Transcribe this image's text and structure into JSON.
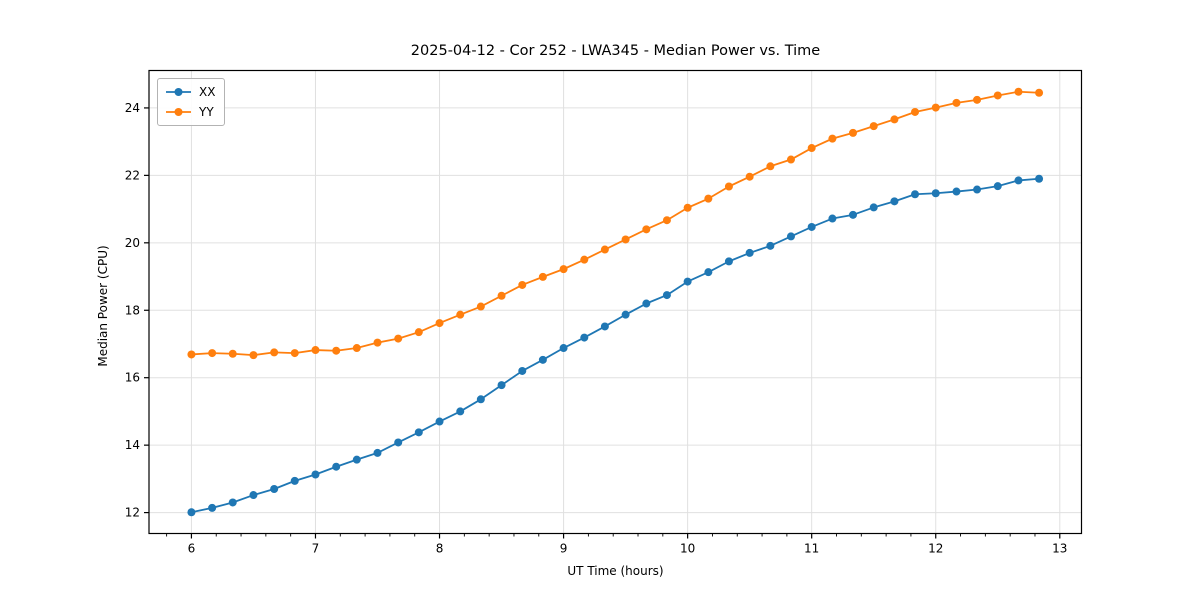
{
  "chart_data": {
    "type": "line",
    "title": "2025-04-12 - Cor 252 - LWA345 - Median Power vs. Time",
    "xlabel": "UT Time (hours)",
    "ylabel": "Median Power (CPU)",
    "xlim": [
      5.658,
      13.175
    ],
    "ylim": [
      11.38,
      25.11
    ],
    "xticks": [
      6,
      7,
      8,
      9,
      10,
      11,
      12,
      13
    ],
    "yticks": [
      12,
      14,
      16,
      18,
      20,
      22,
      24
    ],
    "x_minor_step": 0.2,
    "grid": true,
    "legend_position": "upper left",
    "colors": {
      "background": "#ffffff",
      "grid": "#e0e0e0",
      "spine": "#000000",
      "series_xx": "#1f77b4",
      "series_yy": "#ff7f0e"
    },
    "x": [
      6.0,
      6.167,
      6.333,
      6.5,
      6.667,
      6.833,
      7.0,
      7.167,
      7.333,
      7.5,
      7.667,
      7.833,
      8.0,
      8.167,
      8.333,
      8.5,
      8.667,
      8.833,
      9.0,
      9.167,
      9.333,
      9.5,
      9.667,
      9.833,
      10.0,
      10.167,
      10.333,
      10.5,
      10.667,
      10.833,
      11.0,
      11.167,
      11.333,
      11.5,
      11.667,
      11.833,
      12.0,
      12.167,
      12.333,
      12.5,
      12.667,
      12.833
    ],
    "series": [
      {
        "name": "XX",
        "color": "#1f77b4",
        "values": [
          12.01,
          12.14,
          12.3,
          12.52,
          12.7,
          12.94,
          13.13,
          13.36,
          13.57,
          13.77,
          14.08,
          14.38,
          14.7,
          15.0,
          15.36,
          15.78,
          16.2,
          16.53,
          16.88,
          17.19,
          17.52,
          17.87,
          18.2,
          18.45,
          18.85,
          19.13,
          19.45,
          19.7,
          19.91,
          20.19,
          20.47,
          20.72,
          20.83,
          21.05,
          21.23,
          21.44,
          21.47,
          21.52,
          21.58,
          21.68,
          21.85,
          21.9
        ]
      },
      {
        "name": "YY",
        "color": "#ff7f0e",
        "values": [
          16.69,
          16.73,
          16.71,
          16.67,
          16.75,
          16.73,
          16.82,
          16.8,
          16.88,
          17.04,
          17.16,
          17.35,
          17.62,
          17.87,
          18.11,
          18.43,
          18.75,
          18.99,
          19.22,
          19.5,
          19.8,
          20.1,
          20.4,
          20.67,
          21.04,
          21.31,
          21.67,
          21.96,
          22.27,
          22.47,
          22.81,
          23.09,
          23.26,
          23.46,
          23.66,
          23.88,
          24.01,
          24.15,
          24.24,
          24.37,
          24.48,
          24.45
        ]
      }
    ]
  }
}
